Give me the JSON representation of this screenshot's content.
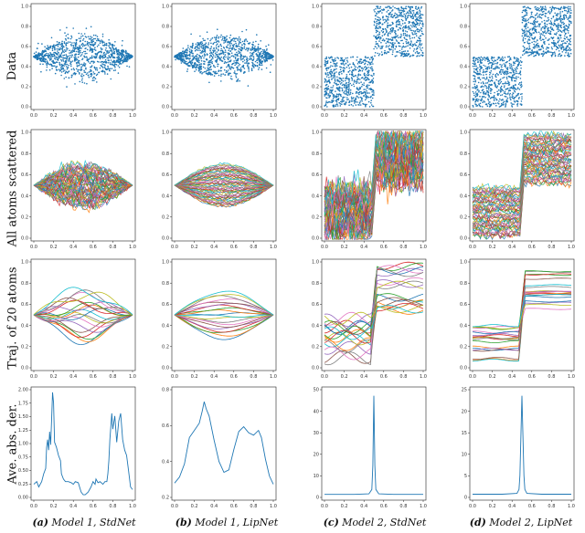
{
  "row_labels": [
    "Data",
    "All atoms scattered",
    "Traj. of 20 atoms",
    "Ave. abs. der."
  ],
  "captions": [
    {
      "tag": "(a)",
      "text": "Model 1, StdNet"
    },
    {
      "tag": "(b)",
      "text": "Model 1, LipNet"
    },
    {
      "tag": "(c)",
      "text": "Model 2, StdNet"
    },
    {
      "tag": "(d)",
      "text": "Model 2, LipNet"
    }
  ],
  "colors": {
    "scatter": "#1f77b4",
    "line": "#1f77b4",
    "palette": [
      "#1f77b4",
      "#ff7f0e",
      "#2ca02c",
      "#d62728",
      "#9467bd",
      "#8c564b",
      "#e377c2",
      "#7f7f7f",
      "#bcbd22",
      "#17becf"
    ]
  },
  "chart_data": [
    {
      "panel": "a-data",
      "type": "scatter",
      "shape": "hourglass",
      "xlim": [
        0,
        1
      ],
      "ylim": [
        0,
        1
      ],
      "xticks": [
        "0.0",
        "0.2",
        "0.4",
        "0.6",
        "0.8",
        "1.0"
      ],
      "yticks": [
        "0.0",
        "0.2",
        "0.4",
        "0.6",
        "0.8",
        "1.0"
      ]
    },
    {
      "panel": "b-data",
      "type": "scatter",
      "shape": "hourglass",
      "xlim": [
        0,
        1
      ],
      "ylim": [
        0,
        1
      ],
      "xticks": [
        "0.0",
        "0.2",
        "0.4",
        "0.6",
        "0.8",
        "1.0"
      ],
      "yticks": [
        "0.0",
        "0.2",
        "0.4",
        "0.6",
        "0.8",
        "1.0"
      ]
    },
    {
      "panel": "c-data",
      "type": "scatter",
      "shape": "two-squares",
      "xlim": [
        0,
        1
      ],
      "ylim": [
        0,
        1
      ],
      "xticks": [
        "0.0",
        "0.2",
        "0.4",
        "0.6",
        "0.8",
        "1.0"
      ],
      "yticks": [
        "0.0",
        "0.2",
        "0.4",
        "0.6",
        "0.8",
        "1.0"
      ]
    },
    {
      "panel": "d-data",
      "type": "scatter",
      "shape": "two-squares",
      "xlim": [
        0,
        1
      ],
      "ylim": [
        0,
        1
      ],
      "xticks": [
        "0.0",
        "0.2",
        "0.4",
        "0.6",
        "0.8",
        "1.0"
      ],
      "yticks": [
        "0.0",
        "0.2",
        "0.4",
        "0.6",
        "0.8",
        "1.0"
      ]
    },
    {
      "panel": "a-atoms",
      "type": "line",
      "shape": "hourglass",
      "xlim": [
        0,
        1
      ],
      "ylim": [
        0,
        1
      ],
      "xticks": [
        "0.0",
        "0.2",
        "0.4",
        "0.6",
        "0.8",
        "1.0"
      ],
      "yticks": [
        "0.0",
        "0.2",
        "0.4",
        "0.6",
        "0.8",
        "1.0"
      ]
    },
    {
      "panel": "b-atoms",
      "type": "line",
      "shape": "hourglass",
      "xlim": [
        0,
        1
      ],
      "ylim": [
        0,
        1
      ],
      "xticks": [
        "0.0",
        "0.2",
        "0.4",
        "0.6",
        "0.8",
        "1.0"
      ],
      "yticks": [
        "0.0",
        "0.2",
        "0.4",
        "0.6",
        "0.8",
        "1.0"
      ]
    },
    {
      "panel": "c-atoms",
      "type": "line",
      "shape": "two-squares",
      "xlim": [
        0,
        1
      ],
      "ylim": [
        0,
        1
      ],
      "xticks": [
        "0.0",
        "0.2",
        "0.4",
        "0.6",
        "0.8",
        "1.0"
      ],
      "yticks": [
        "0.0",
        "0.2",
        "0.4",
        "0.6",
        "0.8",
        "1.0"
      ]
    },
    {
      "panel": "d-atoms",
      "type": "line",
      "shape": "two-squares",
      "xlim": [
        0,
        1
      ],
      "ylim": [
        0,
        1
      ],
      "xticks": [
        "0.0",
        "0.2",
        "0.4",
        "0.6",
        "0.8",
        "1.0"
      ],
      "yticks": [
        "0.0",
        "0.2",
        "0.4",
        "0.6",
        "0.8",
        "1.0"
      ]
    },
    {
      "panel": "a-traj",
      "type": "line",
      "shape": "hourglass",
      "series_count": 20,
      "xlim": [
        0,
        1
      ],
      "ylim": [
        0,
        1
      ],
      "xticks": [
        "0.0",
        "0.2",
        "0.4",
        "0.6",
        "0.8",
        "1.0"
      ],
      "yticks": [
        "0.0",
        "0.2",
        "0.4",
        "0.6",
        "0.8",
        "1.0"
      ]
    },
    {
      "panel": "b-traj",
      "type": "line",
      "shape": "hourglass",
      "series_count": 20,
      "xlim": [
        0,
        1
      ],
      "ylim": [
        0,
        1
      ],
      "xticks": [
        "0.0",
        "0.2",
        "0.4",
        "0.6",
        "0.8",
        "1.0"
      ],
      "yticks": [
        "0.0",
        "0.2",
        "0.4",
        "0.6",
        "0.8",
        "1.0"
      ]
    },
    {
      "panel": "c-traj",
      "type": "line",
      "shape": "two-squares",
      "series_count": 20,
      "xlim": [
        0,
        1
      ],
      "ylim": [
        0,
        1
      ],
      "xticks": [
        "0.0",
        "0.2",
        "0.4",
        "0.6",
        "0.8",
        "1.0"
      ],
      "yticks": [
        "0.0",
        "0.2",
        "0.4",
        "0.6",
        "0.8",
        "1.0"
      ]
    },
    {
      "panel": "d-traj",
      "type": "line",
      "shape": "two-squares",
      "series_count": 20,
      "xlim": [
        0,
        1
      ],
      "ylim": [
        0,
        1
      ],
      "xticks": [
        "0.0",
        "0.2",
        "0.4",
        "0.6",
        "0.8",
        "1.0"
      ],
      "yticks": [
        "0.0",
        "0.2",
        "0.4",
        "0.6",
        "0.8",
        "1.0"
      ]
    },
    {
      "panel": "a-der",
      "type": "line",
      "xlim": [
        0,
        1
      ],
      "ylim": [
        0,
        2.05
      ],
      "x": [
        0.0,
        0.03,
        0.05,
        0.08,
        0.1,
        0.12,
        0.13,
        0.14,
        0.15,
        0.16,
        0.17,
        0.18,
        0.19,
        0.2,
        0.21,
        0.22,
        0.23,
        0.25,
        0.27,
        0.28,
        0.3,
        0.32,
        0.35,
        0.38,
        0.4,
        0.42,
        0.45,
        0.48,
        0.5,
        0.52,
        0.55,
        0.58,
        0.6,
        0.62,
        0.63,
        0.65,
        0.67,
        0.7,
        0.72,
        0.74,
        0.75,
        0.76,
        0.77,
        0.79,
        0.8,
        0.82,
        0.84,
        0.86,
        0.88,
        0.9,
        0.92,
        0.94,
        0.96,
        0.98,
        1.0
      ],
      "y": [
        0.25,
        0.3,
        0.2,
        0.3,
        0.45,
        0.55,
        0.95,
        1.1,
        0.9,
        1.25,
        1.0,
        1.45,
        2.0,
        1.8,
        1.05,
        1.0,
        0.95,
        0.8,
        0.7,
        0.45,
        0.35,
        0.3,
        0.3,
        0.28,
        0.25,
        0.3,
        0.28,
        0.1,
        0.05,
        0.05,
        0.1,
        0.2,
        0.3,
        0.25,
        0.35,
        0.28,
        0.3,
        0.25,
        0.3,
        0.3,
        0.45,
        0.7,
        1.1,
        1.6,
        1.3,
        1.55,
        1.05,
        1.45,
        1.6,
        1.1,
        0.9,
        0.8,
        0.5,
        0.2,
        0.15
      ],
      "xticks": [
        "0.0",
        "0.2",
        "0.4",
        "0.6",
        "0.8",
        "1.0"
      ],
      "yticks": [
        "0.00",
        "0.25",
        "0.50",
        "0.75",
        "1.00",
        "1.25",
        "1.50",
        "1.75",
        "2.00"
      ]
    },
    {
      "panel": "b-der",
      "type": "line",
      "xlim": [
        0,
        1
      ],
      "ylim": [
        0.1,
        1.0
      ],
      "x": [
        0.0,
        0.05,
        0.1,
        0.15,
        0.2,
        0.25,
        0.28,
        0.3,
        0.32,
        0.35,
        0.4,
        0.45,
        0.5,
        0.55,
        0.6,
        0.65,
        0.7,
        0.75,
        0.8,
        0.85,
        0.88,
        0.92,
        0.96,
        1.0
      ],
      "y": [
        0.22,
        0.27,
        0.38,
        0.6,
        0.66,
        0.72,
        0.82,
        0.9,
        0.84,
        0.78,
        0.58,
        0.4,
        0.31,
        0.33,
        0.5,
        0.65,
        0.69,
        0.64,
        0.62,
        0.66,
        0.6,
        0.42,
        0.28,
        0.21
      ],
      "xticks": [
        "0.0",
        "0.2",
        "0.4",
        "0.6",
        "0.8",
        "1.0"
      ],
      "yticks": [
        "0.2",
        "0.4",
        "0.6",
        "0.8"
      ]
    },
    {
      "panel": "c-der",
      "type": "line",
      "xlim": [
        0,
        1
      ],
      "ylim": [
        -1,
        53
      ],
      "x": [
        0.0,
        0.3,
        0.45,
        0.48,
        0.49,
        0.5,
        0.51,
        0.52,
        0.55,
        0.7,
        1.0
      ],
      "y": [
        0.5,
        0.5,
        0.8,
        3,
        15,
        50,
        15,
        3,
        0.8,
        0.5,
        0.5
      ],
      "xticks": [
        "0.0",
        "0.2",
        "0.4",
        "0.6",
        "0.8",
        "1.0"
      ],
      "yticks": [
        "0",
        "10",
        "20",
        "30",
        "40",
        "50"
      ]
    },
    {
      "panel": "d-der",
      "type": "line",
      "xlim": [
        0,
        1
      ],
      "ylim": [
        -0.5,
        26.5
      ],
      "x": [
        0.0,
        0.3,
        0.45,
        0.47,
        0.48,
        0.49,
        0.5,
        0.51,
        0.52,
        0.53,
        0.55,
        0.7,
        1.0
      ],
      "y": [
        0.3,
        0.3,
        0.5,
        1.5,
        5,
        15,
        25,
        15,
        5,
        1.5,
        0.5,
        0.3,
        0.3
      ],
      "xticks": [
        "0.0",
        "0.2",
        "0.4",
        "0.6",
        "0.8",
        "1.0"
      ],
      "yticks": [
        "0",
        "5",
        "10",
        "15",
        "20",
        "25"
      ]
    }
  ]
}
